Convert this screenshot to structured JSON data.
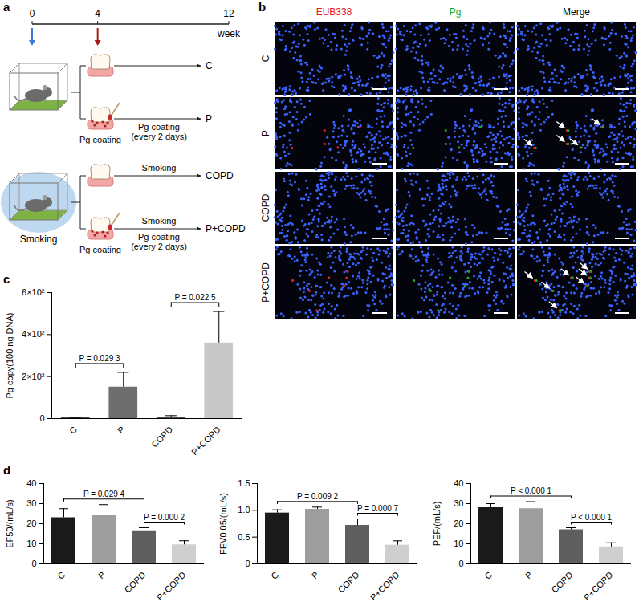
{
  "diagram": {
    "panel": "a",
    "timeline": {
      "ticks": [
        0,
        4,
        12
      ],
      "unit": "week"
    },
    "rows": [
      {
        "branches": [
          {
            "label": "C"
          },
          {
            "label": "P",
            "coating": "Pg coating",
            "below": "Pg coating (every 2 days)"
          }
        ]
      },
      {
        "smoking": "Smoking",
        "branches": [
          {
            "label": "COPD",
            "above": "Smoking"
          },
          {
            "label": "P+COPD",
            "coating": "Pg coating",
            "above": "Smoking",
            "below": "Pg coating (every 2 days)"
          }
        ]
      }
    ]
  },
  "images": {
    "panel": "b",
    "columns": [
      {
        "label": "EUB338",
        "color": "#e02020"
      },
      {
        "label": "Pg",
        "color": "#22aa22"
      },
      {
        "label": "Merge",
        "color": "#000000"
      }
    ],
    "rows": [
      {
        "label": "C",
        "arrows": 0
      },
      {
        "label": "P",
        "arrows": 5
      },
      {
        "label": "COPD",
        "arrows": 0
      },
      {
        "label": "P+COPD",
        "arrows": 7
      }
    ]
  },
  "chart_data": [
    {
      "panel": "c",
      "type": "bar",
      "categories": [
        "C",
        "P",
        "COPD",
        "P+COPD"
      ],
      "values": [
        3,
        150,
        6,
        360
      ],
      "errors": [
        2,
        70,
        8,
        150
      ],
      "colors": [
        "#1a1a1a",
        "#6e6e6e",
        "#4d4d4d",
        "#c8c8c8"
      ],
      "ylabel": "Pg copy(100 ng DNA)",
      "ylim": [
        0,
        600
      ],
      "yticks": [
        0,
        {
          "value": 200,
          "label": "2×10²"
        },
        {
          "value": 400,
          "label": "4×10²"
        },
        {
          "value": 600,
          "label": "6×10²"
        }
      ],
      "annotations": [
        {
          "text": "P = 0.029 3",
          "from": "C",
          "to": "P"
        },
        {
          "text": "P = 0.022 5",
          "from": "COPD",
          "to": "P+COPD"
        }
      ]
    },
    {
      "panel": "d",
      "type": "bar",
      "categories": [
        "C",
        "P",
        "COPD",
        "P+COPD"
      ],
      "values": [
        23,
        24,
        16.5,
        9.5
      ],
      "errors": [
        4.5,
        5.5,
        1.5,
        2
      ],
      "colors": [
        "#1a1a1a",
        "#9e9e9e",
        "#5e5e5e",
        "#cfcfcf"
      ],
      "ylabel": "EF50/(mL/s)",
      "ylim": [
        0,
        40
      ],
      "yticks": [
        0,
        10,
        20,
        30,
        40
      ],
      "annotations": [
        {
          "text": "P = 0.029 4",
          "from": "C",
          "to": "COPD"
        },
        {
          "text": "P = 0.000 2",
          "from": "COPD",
          "to": "P+COPD"
        }
      ]
    },
    {
      "type": "bar",
      "categories": [
        "C",
        "P",
        "COPD",
        "P+COPD"
      ],
      "values": [
        0.95,
        1.02,
        0.72,
        0.35
      ],
      "errors": [
        0.06,
        0.04,
        0.12,
        0.08
      ],
      "colors": [
        "#1a1a1a",
        "#9e9e9e",
        "#5e5e5e",
        "#cfcfcf"
      ],
      "ylabel": "FEV0.05/(mL/s)",
      "ylim": [
        0,
        1.5
      ],
      "yticks": [
        0,
        0.5,
        {
          "value": 1,
          "label": "1.0"
        },
        1.5
      ],
      "annotations": [
        {
          "text": "P = 0.009 2",
          "from": "C",
          "to": "COPD"
        },
        {
          "text": "P = 0.000 7",
          "from": "COPD",
          "to": "P+COPD"
        }
      ]
    },
    {
      "type": "bar",
      "categories": [
        "C",
        "P",
        "COPD",
        "P+COPD"
      ],
      "values": [
        28,
        27.5,
        17,
        8.5
      ],
      "errors": [
        2,
        3.5,
        1,
        2
      ],
      "colors": [
        "#1a1a1a",
        "#9e9e9e",
        "#5e5e5e",
        "#cfcfcf"
      ],
      "ylabel": "PEF/(mL/s)",
      "ylim": [
        0,
        40
      ],
      "yticks": [
        0,
        10,
        20,
        30,
        40
      ],
      "annotations": [
        {
          "text": "P < 0.000 1",
          "from": "C",
          "to": "COPD"
        },
        {
          "text": "P < 0.000 1",
          "from": "COPD",
          "to": "P+COPD"
        }
      ]
    }
  ]
}
